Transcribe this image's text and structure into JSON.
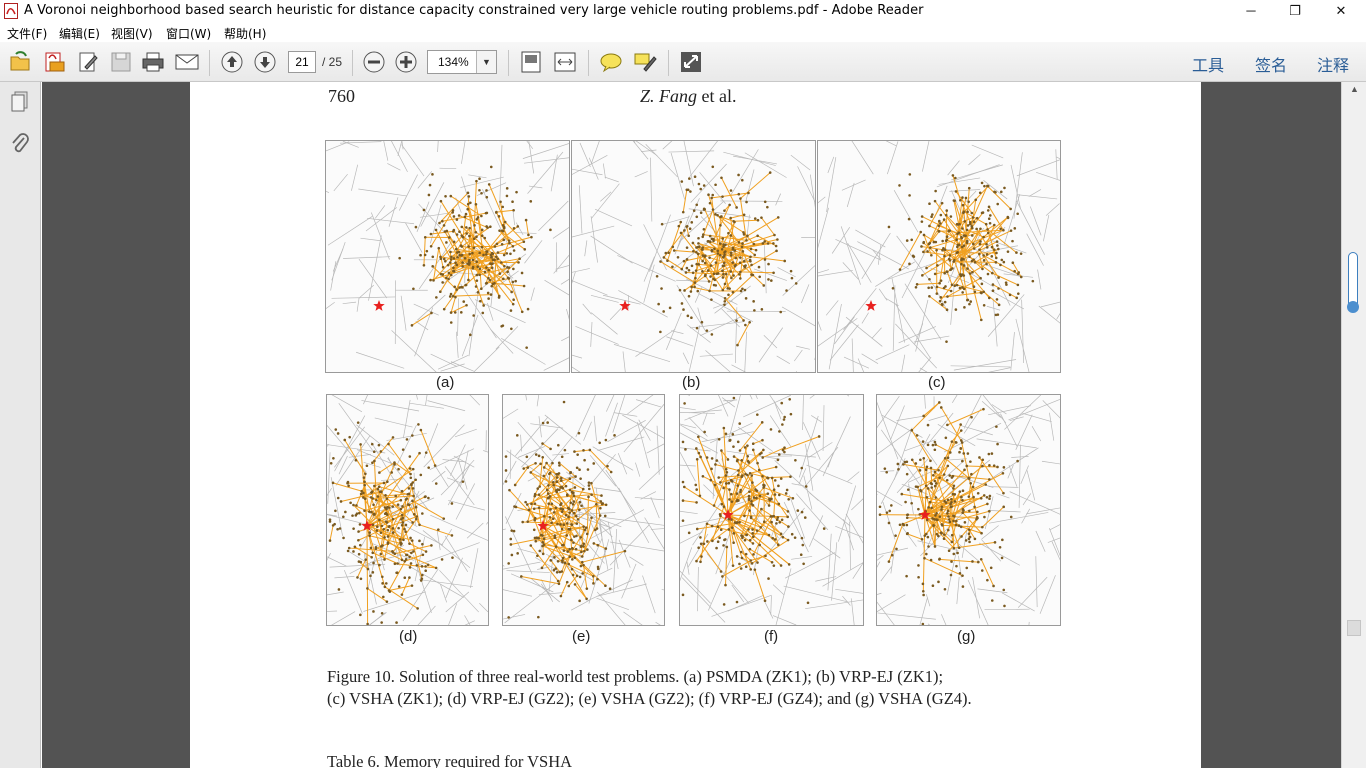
{
  "window": {
    "title": "A Voronoi neighborhood based search heuristic for distance capacity constrained very large vehicle routing problems.pdf - Adobe Reader",
    "minimize": "─",
    "restore": "❐",
    "close": "✕"
  },
  "menu": [
    {
      "label": "文件(F)"
    },
    {
      "label": "编辑(E)"
    },
    {
      "label": "视图(V)"
    },
    {
      "label": "窗口(W)"
    },
    {
      "label": "帮助(H)"
    }
  ],
  "toolbar": {
    "page_current": "21",
    "page_total": "/ 25",
    "zoom": "134%",
    "zoom_arrow": "▼",
    "right_links": [
      "工具",
      "签名",
      "注释"
    ]
  },
  "document": {
    "page_number": "760",
    "running_head_author": "Z. Fang",
    "running_head_suffix": " et al.",
    "subfigure_labels": [
      "(a)",
      "(b)",
      "(c)",
      "(d)",
      "(e)",
      "(f)",
      "(g)"
    ],
    "caption_line1": "Figure 10.   Solution of three real-world test problems. (a) PSMDA (ZK1); (b) VRP-EJ (ZK1);",
    "caption_line2": "(c) VSHA (ZK1); (d) VRP-EJ (GZ2); (e) VSHA (GZ2); (f) VRP-EJ (GZ4); and (g) VSHA (GZ4).",
    "table_title": "Table 6.    Memory required for VSHA"
  },
  "scrollbar": {
    "up_arrow": "▲"
  },
  "colors": {
    "route": "#f0a020",
    "node": "#7a5a20",
    "depot": "#e8201e",
    "voronoi": "#b8b8b8",
    "link": "#2a5d96"
  }
}
